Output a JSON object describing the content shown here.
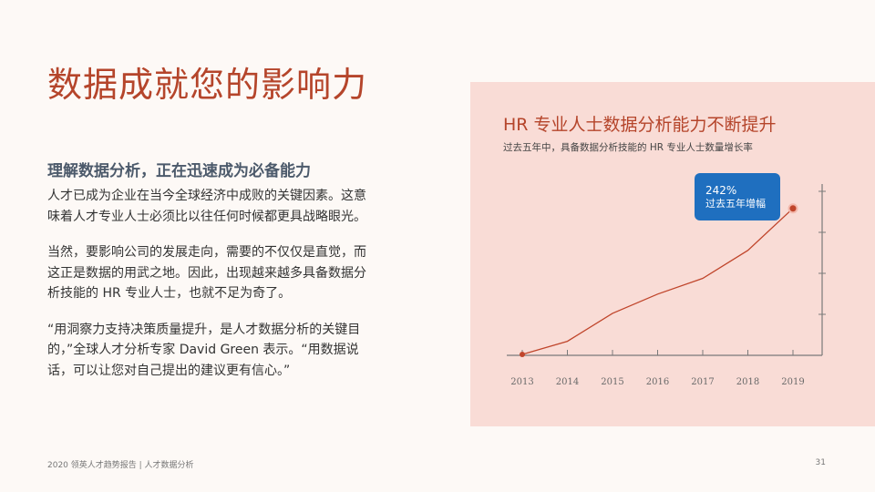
{
  "page": {
    "title": "数据成就您的影响力",
    "footer_text": "2020 领英人才趋势报告 | 人才数据分析",
    "page_number": "31"
  },
  "content": {
    "subheading": "理解数据分析，正在迅速成为必备能力",
    "paragraphs": [
      "人才已成为企业在当今全球经济中成败的关键因素。这意味着人才专业人士必须比以往任何时候都更具战略眼光。",
      "当然，要影响公司的发展走向，需要的不仅仅是直觉，而这正是数据的用武之地。因此，出现越来越多具备数据分析技能的 HR 专业人士，也就不足为奇了。",
      "“用洞察力支持决策质量提升，是人才数据分析的关键目的，”全球人才分析专家 David Green 表示。“用数据说话，可以让您对自己提出的建议更有信心。”"
    ]
  },
  "chart_data": {
    "type": "line",
    "title": "HR 专业人士数据分析能力不断提升",
    "subtitle": "过去五年中，具备数据分析技能的 HR 专业人士数量增长率",
    "x": [
      "2013",
      "2014",
      "2015",
      "2016",
      "2017",
      "2018",
      "2019"
    ],
    "series": [
      {
        "values": [
          0.5,
          8,
          24,
          35,
          44,
          60,
          84
        ]
      }
    ],
    "ylim": [
      0,
      100
    ],
    "grid": false,
    "annotation": {
      "x": "2019",
      "value": "242%",
      "label": "过去五年增幅"
    },
    "colors": {
      "line": "#c0452b",
      "marker": "#c0452b",
      "callout": "#1f6fbf",
      "axis": "#7a7a7a"
    }
  }
}
